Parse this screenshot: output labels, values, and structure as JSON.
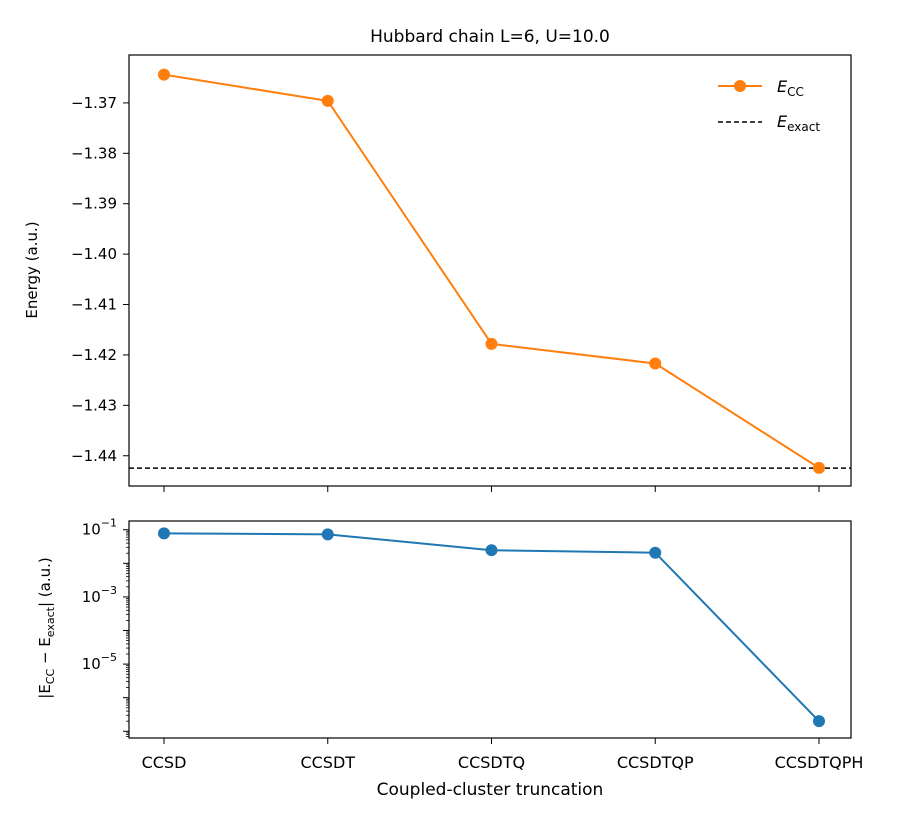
{
  "chart_data": [
    {
      "type": "line",
      "title": "Hubbard chain L=6, U=10.0",
      "xlabel": "",
      "ylabel": "Energy (a.u.)",
      "categories": [
        "CCSD",
        "CCSDT",
        "CCSDTQ",
        "CCSDTQP",
        "CCSDTQPH"
      ],
      "ylim": [
        -1.446,
        -1.3605
      ],
      "yticks": [
        -1.37,
        -1.38,
        -1.39,
        -1.4,
        -1.41,
        -1.42,
        -1.43,
        -1.44
      ],
      "ytick_labels": [
        "−1.37",
        "−1.38",
        "−1.39",
        "−1.40",
        "−1.41",
        "−1.42",
        "−1.43",
        "−1.44"
      ],
      "grid": false,
      "legend_position": "top-right",
      "series": [
        {
          "name_base": "E",
          "name_sub": "CC",
          "color": "#ff7f0e",
          "marker": "circle",
          "values": [
            -1.3644,
            -1.3696,
            -1.4178,
            -1.4217,
            -1.4424
          ]
        }
      ],
      "reference_line": {
        "name_base": "E",
        "name_sub": "exact",
        "value": -1.44245,
        "color": "#000000",
        "style": "dashed"
      }
    },
    {
      "type": "line",
      "xlabel": "Coupled-cluster truncation",
      "ylabel_parts": [
        "|E",
        "CC",
        " − E",
        "exact",
        "| (a.u.)"
      ],
      "categories": [
        "CCSD",
        "CCSDT",
        "CCSDTQ",
        "CCSDTQP",
        "CCSDTQPH"
      ],
      "yscale": "log",
      "ylim_log10": [
        -7.2,
        -0.74
      ],
      "yticks_log10": [
        -1,
        -3,
        -5
      ],
      "grid": false,
      "series": [
        {
          "color": "#1f77b4",
          "marker": "circle",
          "values": [
            0.078,
            0.0728,
            0.0246,
            0.0207,
            2e-07
          ]
        }
      ]
    }
  ]
}
